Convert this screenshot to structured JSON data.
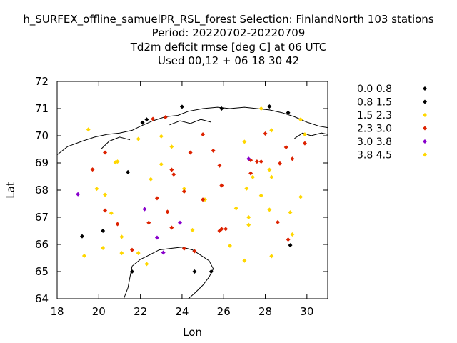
{
  "chart_data": {
    "type": "scatter",
    "title_lines": [
      "h_SURFEX_offline_samuelPR_RSL_forest   Selection: FinlandNorth    103 stations",
      "Period: 20220702-20220709",
      "Td2m deficit rmse [deg C] at  06 UTC",
      "Used  00,12  + 06 18 30 42"
    ],
    "xlabel": "Lon",
    "ylabel": "Lat",
    "xlim": [
      18,
      31
    ],
    "ylim": [
      64,
      72
    ],
    "xticks": [
      "18",
      "20",
      "22",
      "24",
      "26",
      "28",
      "30"
    ],
    "yticks": [
      "64",
      "65",
      "66",
      "67",
      "68",
      "69",
      "70",
      "71",
      "72"
    ],
    "grid": false,
    "legend_position": "right",
    "series": [
      {
        "name": "0.0 0.8",
        "color": "#000000",
        "points": [
          [
            24.0,
            71.07
          ],
          [
            29.1,
            70.85
          ],
          [
            28.2,
            71.08
          ],
          [
            25.9,
            71.0
          ],
          [
            22.1,
            70.48
          ],
          [
            21.4,
            68.66
          ],
          [
            20.2,
            66.5
          ],
          [
            19.2,
            66.3
          ],
          [
            21.6,
            65.0
          ],
          [
            24.6,
            65.0
          ],
          [
            25.4,
            65.0
          ],
          [
            29.2,
            65.97
          ]
        ]
      },
      {
        "name": "0.8 1.5",
        "color": "#000000",
        "points": [
          [
            22.3,
            70.6
          ]
        ]
      },
      {
        "name": "1.5 2.3",
        "color": "#ffd700",
        "points": [
          [
            19.5,
            70.23
          ],
          [
            20.9,
            69.05
          ],
          [
            20.8,
            69.02
          ],
          [
            21.9,
            69.88
          ],
          [
            23.0,
            69.98
          ],
          [
            23.5,
            69.6
          ],
          [
            22.5,
            68.4
          ],
          [
            23.0,
            68.95
          ],
          [
            19.9,
            68.05
          ],
          [
            20.3,
            67.83
          ],
          [
            20.6,
            67.15
          ],
          [
            21.1,
            66.28
          ],
          [
            20.2,
            65.87
          ],
          [
            21.1,
            65.68
          ],
          [
            21.9,
            65.68
          ],
          [
            22.3,
            65.28
          ],
          [
            19.3,
            65.58
          ],
          [
            24.1,
            68.05
          ],
          [
            24.1,
            67.95
          ],
          [
            24.5,
            66.53
          ],
          [
            25.1,
            67.65
          ],
          [
            26.6,
            67.33
          ],
          [
            27.0,
            69.78
          ],
          [
            27.1,
            68.06
          ],
          [
            27.2,
            67.0
          ],
          [
            27.2,
            66.72
          ],
          [
            27.4,
            68.48
          ],
          [
            28.2,
            68.75
          ],
          [
            28.3,
            68.48
          ],
          [
            27.8,
            67.8
          ],
          [
            28.2,
            67.28
          ],
          [
            28.3,
            65.57
          ],
          [
            29.2,
            67.18
          ],
          [
            29.3,
            66.37
          ],
          [
            29.7,
            67.75
          ],
          [
            29.7,
            70.6
          ],
          [
            29.9,
            70.05
          ],
          [
            27.8,
            71.0
          ],
          [
            27.0,
            65.4
          ],
          [
            26.3,
            65.95
          ]
        ]
      },
      {
        "name": "2.3 3.0",
        "color": "#dd2200",
        "points": [
          [
            22.6,
            70.62
          ],
          [
            23.2,
            70.68
          ],
          [
            20.3,
            69.38
          ],
          [
            19.7,
            68.76
          ],
          [
            23.5,
            68.75
          ],
          [
            23.6,
            68.58
          ],
          [
            24.4,
            69.38
          ],
          [
            25.5,
            69.45
          ],
          [
            25.8,
            68.9
          ],
          [
            24.1,
            67.95
          ],
          [
            22.8,
            67.7
          ],
          [
            23.3,
            67.2
          ],
          [
            20.3,
            67.25
          ],
          [
            20.9,
            66.75
          ],
          [
            22.4,
            66.8
          ],
          [
            23.5,
            66.62
          ],
          [
            21.6,
            65.8
          ],
          [
            24.1,
            65.85
          ],
          [
            24.6,
            65.75
          ],
          [
            25.0,
            70.05
          ],
          [
            27.3,
            69.1
          ],
          [
            27.6,
            69.05
          ],
          [
            27.8,
            69.05
          ],
          [
            28.0,
            70.08
          ],
          [
            28.7,
            68.98
          ],
          [
            29.0,
            69.58
          ],
          [
            29.3,
            69.15
          ],
          [
            29.9,
            69.72
          ],
          [
            28.6,
            66.82
          ],
          [
            29.1,
            66.18
          ],
          [
            25.8,
            66.5
          ],
          [
            25.9,
            66.57
          ],
          [
            26.1,
            66.57
          ],
          [
            25.9,
            68.17
          ],
          [
            27.3,
            68.62
          ],
          [
            25.0,
            67.65
          ]
        ]
      },
      {
        "name": "3.0 3.8",
        "color": "#8800cc",
        "points": [
          [
            19.0,
            67.85
          ],
          [
            22.2,
            67.3
          ],
          [
            23.9,
            66.8
          ],
          [
            22.8,
            66.25
          ],
          [
            23.1,
            65.7
          ],
          [
            27.2,
            69.15
          ]
        ]
      },
      {
        "name": "3.8 4.5",
        "color": "#ffd700",
        "points": [
          [
            28.3,
            70.2
          ],
          [
            29.7,
            70.6
          ]
        ]
      }
    ]
  },
  "coastline_color": "#000000",
  "axes_color": "#000000"
}
